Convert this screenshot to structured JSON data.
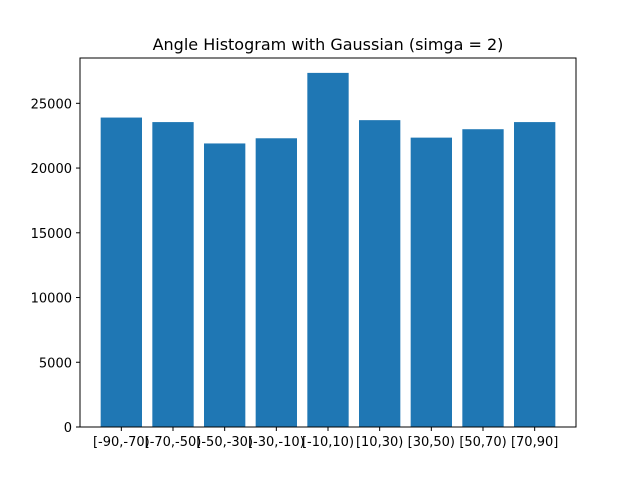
{
  "chart_data": {
    "type": "bar",
    "title": "Angle Histogram with Gaussian (simga = 2)",
    "xlabel": "",
    "ylabel": "",
    "categories": [
      "[-90,-70)",
      "[-70,-50)",
      "[-50,-30)",
      "[-30,-10)",
      "[-10,10)",
      "[10,30)",
      "[30,50)",
      "[50,70)",
      "[70,90]"
    ],
    "values": [
      23900,
      23550,
      21900,
      22300,
      27350,
      23700,
      22350,
      23000,
      23550
    ],
    "ylim": [
      0,
      28500
    ],
    "yticks": [
      0,
      5000,
      10000,
      15000,
      20000,
      25000
    ],
    "bar_color": "#1f77b4",
    "grid": false,
    "legend": "none"
  }
}
